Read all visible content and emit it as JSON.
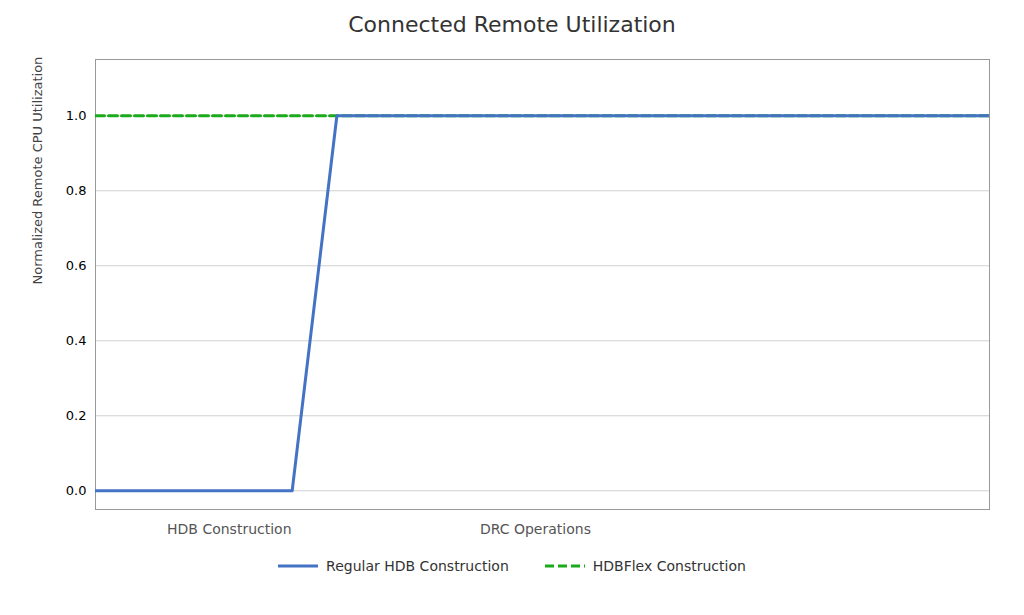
{
  "chart_data": {
    "type": "line",
    "title": "Connected Remote Utilization",
    "ylabel": "Normalized Remote CPU Utilization",
    "series": [
      {
        "name": "Regular HDB Construction",
        "color": "#4472c4",
        "line_style": "solid",
        "x": [
          0,
          2.2,
          2.7,
          10
        ],
        "values": [
          0,
          0,
          1.0,
          1.0
        ]
      },
      {
        "name": "HDBFlex Construction",
        "color": "#1aaa1a",
        "line_style": "dashed",
        "x": [
          0,
          10
        ],
        "values": [
          1.0,
          1.0
        ]
      }
    ],
    "xlim": [
      0,
      10
    ],
    "ylim": [
      -0.05,
      1.15
    ],
    "yticks": [
      {
        "value": 0,
        "label": "0.0"
      },
      0.2,
      0.4,
      0.6,
      0.8,
      {
        "value": 1.0,
        "label": "1.0"
      }
    ],
    "grid": true,
    "tick_labels": "y",
    "legend": "bottom",
    "annotations": [
      {
        "text": "HDB Construction"
      },
      {
        "text": "DRC Operations"
      }
    ]
  }
}
